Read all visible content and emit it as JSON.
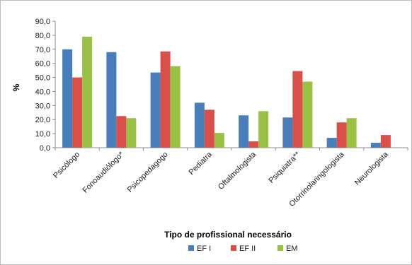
{
  "chart_data": {
    "type": "bar",
    "title": "",
    "xlabel": "Tipo de profissional necessário",
    "ylabel": "%",
    "ylim": [
      0,
      90
    ],
    "ytick_step": 10,
    "ytick_labels": [
      "0,0",
      "10,0",
      "20,0",
      "30,0",
      "40,0",
      "50,0",
      "60,0",
      "70,0",
      "80,0",
      "90,0"
    ],
    "grid": false,
    "legend_position": "bottom",
    "categories": [
      "Psicólogo",
      "Fonoaudiólogo*",
      "Psicopedagogo",
      "Pediatra",
      "Oftalmologista",
      "Psiquiatra**",
      "Otorrinolaringologista",
      "Neurologista"
    ],
    "series": [
      {
        "name": "EF I",
        "color": "#4a7ebb",
        "values": [
          70.0,
          68.0,
          53.5,
          32.0,
          23.0,
          21.5,
          7.0,
          3.5
        ]
      },
      {
        "name": "EF II",
        "color": "#d9504b",
        "values": [
          50.0,
          22.5,
          68.5,
          27.0,
          4.5,
          54.5,
          18.0,
          9.0
        ]
      },
      {
        "name": "EM",
        "color": "#9bc046",
        "values": [
          79.0,
          21.0,
          58.0,
          10.5,
          26.0,
          47.0,
          21.0,
          null
        ]
      }
    ]
  }
}
